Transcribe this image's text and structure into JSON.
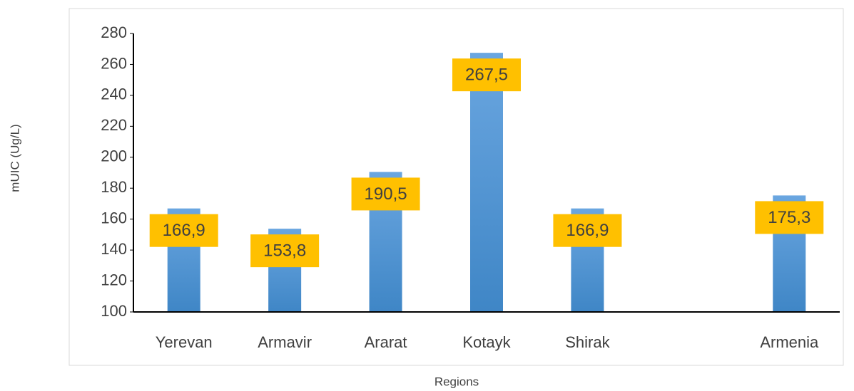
{
  "chart_data": {
    "type": "bar",
    "categories": [
      "Yerevan",
      "Armavir",
      "Ararat",
      "Kotayk",
      "Shirak",
      null,
      "Armenia"
    ],
    "values": [
      166.9,
      153.8,
      190.5,
      267.5,
      166.9,
      null,
      175.3
    ],
    "value_labels": [
      "166,9",
      "153,8",
      "190,5",
      "267,5",
      "166,9",
      null,
      "175,3"
    ],
    "color": "#5b9bd5",
    "label_color": "#ffc000",
    "ylim": [
      100,
      280
    ],
    "yticks": [
      100,
      120,
      140,
      160,
      180,
      200,
      220,
      240,
      260,
      280
    ],
    "y_label": "mUIC (Ug/L)",
    "x_label": "Regions",
    "grid": false
  }
}
